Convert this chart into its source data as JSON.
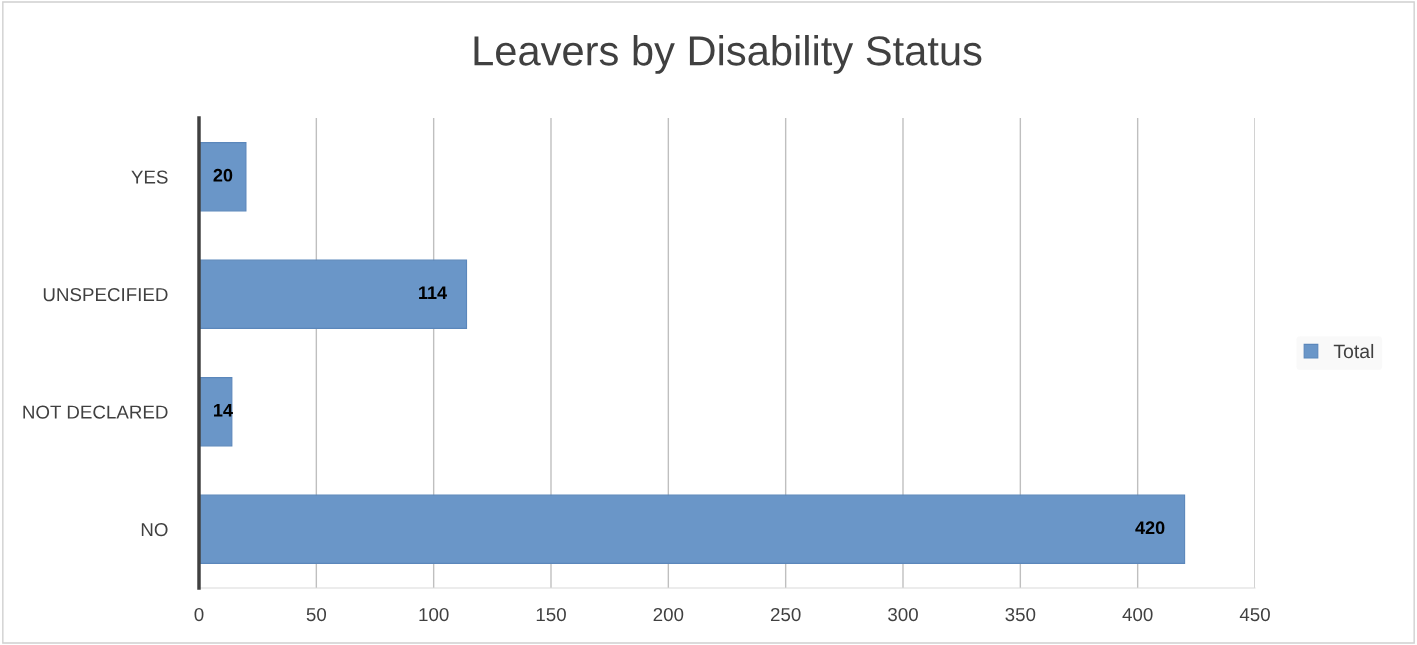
{
  "chart_data": {
    "type": "bar",
    "orientation": "horizontal",
    "title": "Leavers by Disability Status",
    "categories": [
      "YES",
      "UNSPECIFIED",
      "NOT DECLARED",
      "NO"
    ],
    "series": [
      {
        "name": "Total",
        "color": "#6a96c8",
        "values": [
          20,
          114,
          14,
          420
        ]
      }
    ],
    "xlim": [
      0,
      450
    ],
    "xticks": [
      0,
      50,
      100,
      150,
      200,
      250,
      300,
      350,
      400,
      450
    ],
    "grid": "x",
    "legend": "right",
    "data_labels": true
  }
}
